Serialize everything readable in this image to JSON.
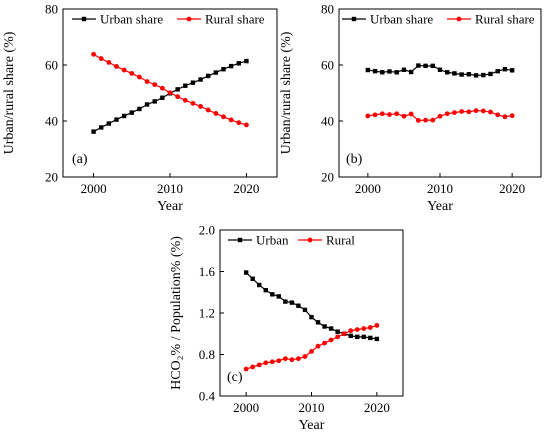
{
  "chart_data": [
    {
      "id": "a",
      "type": "line",
      "panel_label": "(a)",
      "xlabel": "Year",
      "ylabel": "Urban/rural share (%)",
      "xlim": [
        1996,
        2024
      ],
      "ylim": [
        20,
        80
      ],
      "xticks": [
        2000,
        2010,
        2020
      ],
      "yticks": [
        20,
        40,
        60,
        80
      ],
      "legend_position": "top",
      "x": [
        2000,
        2001,
        2002,
        2003,
        2004,
        2005,
        2006,
        2007,
        2008,
        2009,
        2010,
        2011,
        2012,
        2013,
        2014,
        2015,
        2016,
        2017,
        2018,
        2019,
        2020
      ],
      "series": [
        {
          "name": "Urban share",
          "color": "#000000",
          "marker": "square",
          "values": [
            36.2,
            37.7,
            39.1,
            40.5,
            41.8,
            43.0,
            44.3,
            45.9,
            47.0,
            48.3,
            49.9,
            51.3,
            52.6,
            53.7,
            54.8,
            56.1,
            57.3,
            58.5,
            59.6,
            60.6,
            61.4
          ]
        },
        {
          "name": "Rural share",
          "color": "#ff0000",
          "marker": "circle",
          "values": [
            63.8,
            62.3,
            60.9,
            59.5,
            58.2,
            57.0,
            55.7,
            54.1,
            53.0,
            51.7,
            50.1,
            48.7,
            47.4,
            46.3,
            45.2,
            43.9,
            42.7,
            41.5,
            40.4,
            39.4,
            38.6
          ]
        }
      ]
    },
    {
      "id": "b",
      "type": "line",
      "panel_label": "(b)",
      "xlabel": "Year",
      "ylabel": "Urban/rural share (%)",
      "xlim": [
        1996,
        2024
      ],
      "ylim": [
        20,
        80
      ],
      "xticks": [
        2000,
        2010,
        2020
      ],
      "yticks": [
        20,
        40,
        60,
        80
      ],
      "legend_position": "top",
      "x": [
        2000,
        2001,
        2002,
        2003,
        2004,
        2005,
        2006,
        2007,
        2008,
        2009,
        2010,
        2011,
        2012,
        2013,
        2014,
        2015,
        2016,
        2017,
        2018,
        2019,
        2020
      ],
      "series": [
        {
          "name": "Urban share",
          "color": "#000000",
          "marker": "square",
          "values": [
            58.2,
            57.8,
            57.4,
            57.7,
            57.4,
            58.3,
            57.5,
            59.8,
            59.7,
            59.7,
            58.3,
            57.4,
            57.0,
            56.6,
            56.7,
            56.3,
            56.4,
            56.8,
            57.8,
            58.5,
            58.1
          ]
        },
        {
          "name": "Rural share",
          "color": "#ff0000",
          "marker": "circle",
          "values": [
            41.8,
            42.2,
            42.6,
            42.3,
            42.6,
            41.7,
            42.5,
            40.2,
            40.3,
            40.3,
            41.7,
            42.6,
            43.0,
            43.4,
            43.3,
            43.7,
            43.6,
            43.2,
            42.2,
            41.5,
            41.9
          ]
        }
      ]
    },
    {
      "id": "c",
      "type": "line",
      "panel_label": "(c)",
      "xlabel": "Year",
      "ylabel": "HCO₂% / Population% (%)",
      "xlim": [
        1996,
        2024
      ],
      "ylim": [
        0.4,
        2.0
      ],
      "xticks": [
        2000,
        2010,
        2020
      ],
      "yticks": [
        0.4,
        0.8,
        1.2,
        1.6,
        2.0
      ],
      "ytick_labels": [
        "0.4",
        "0.8",
        "1.2",
        "1.6",
        "2.0"
      ],
      "legend_position": "top",
      "x": [
        2000,
        2001,
        2002,
        2003,
        2004,
        2005,
        2006,
        2007,
        2008,
        2009,
        2010,
        2011,
        2012,
        2013,
        2014,
        2015,
        2016,
        2017,
        2018,
        2019,
        2020
      ],
      "series": [
        {
          "name": "Urban",
          "color": "#000000",
          "marker": "square",
          "values": [
            1.59,
            1.53,
            1.47,
            1.42,
            1.38,
            1.36,
            1.31,
            1.3,
            1.27,
            1.23,
            1.16,
            1.11,
            1.07,
            1.05,
            1.02,
            1.0,
            0.98,
            0.97,
            0.97,
            0.96,
            0.95
          ]
        },
        {
          "name": "Rural",
          "color": "#ff0000",
          "marker": "circle",
          "values": [
            0.66,
            0.68,
            0.7,
            0.72,
            0.73,
            0.74,
            0.76,
            0.75,
            0.76,
            0.78,
            0.83,
            0.88,
            0.91,
            0.94,
            0.97,
            1.0,
            1.03,
            1.04,
            1.05,
            1.06,
            1.08
          ]
        }
      ]
    }
  ]
}
